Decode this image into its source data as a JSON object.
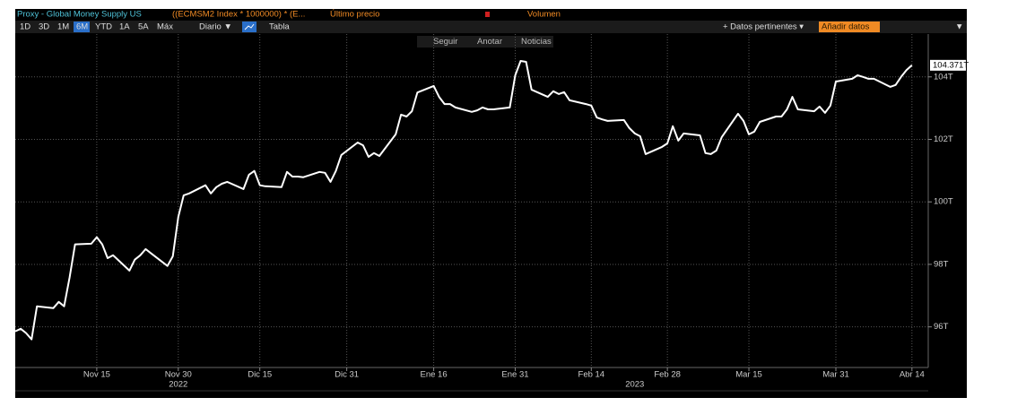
{
  "header": {
    "title": "Proxy - Global Money Supply US",
    "formula": "((ECMSM2 Index * 1000000) * (E...",
    "price": "Último precio",
    "volume": "Volumen"
  },
  "toolbar": {
    "ranges": [
      "1D",
      "3D",
      "1M",
      "6M",
      "YTD",
      "1A",
      "5A",
      "Máx"
    ],
    "active": "6M",
    "interval": "Diario ▼",
    "table": "Tabla",
    "related": "+ Datos pertinentes ▾",
    "add": "Añadir datos",
    "menu": "▼"
  },
  "actions": [
    "Seguir",
    "Anotar",
    "Noticias"
  ],
  "chart_data": {
    "type": "line",
    "x": [
      "2022-10-31",
      "2022-11-01",
      "2022-11-02",
      "2022-11-03",
      "2022-11-04",
      "2022-11-07",
      "2022-11-08",
      "2022-11-09",
      "2022-11-10",
      "2022-11-11",
      "2022-11-14",
      "2022-11-15",
      "2022-11-16",
      "2022-11-17",
      "2022-11-18",
      "2022-11-21",
      "2022-11-22",
      "2022-11-23",
      "2022-11-24",
      "2022-11-25",
      "2022-11-28",
      "2022-11-29",
      "2022-11-30",
      "2022-12-01",
      "2022-12-02",
      "2022-12-05",
      "2022-12-06",
      "2022-12-07",
      "2022-12-08",
      "2022-12-09",
      "2022-12-12",
      "2022-12-13",
      "2022-12-14",
      "2022-12-15",
      "2022-12-16",
      "2022-12-19",
      "2022-12-20",
      "2022-12-21",
      "2022-12-22",
      "2022-12-23",
      "2022-12-26",
      "2022-12-27",
      "2022-12-28",
      "2022-12-29",
      "2022-12-30",
      "2023-01-02",
      "2023-01-03",
      "2023-01-04",
      "2023-01-05",
      "2023-01-06",
      "2023-01-09",
      "2023-01-10",
      "2023-01-11",
      "2023-01-12",
      "2023-01-13",
      "2023-01-16",
      "2023-01-17",
      "2023-01-18",
      "2023-01-19",
      "2023-01-20",
      "2023-01-23",
      "2023-01-24",
      "2023-01-25",
      "2023-01-26",
      "2023-01-27",
      "2023-01-30",
      "2023-01-31",
      "2023-02-01",
      "2023-02-02",
      "2023-02-03",
      "2023-02-06",
      "2023-02-07",
      "2023-02-08",
      "2023-02-09",
      "2023-02-10",
      "2023-02-13",
      "2023-02-14",
      "2023-02-15",
      "2023-02-16",
      "2023-02-17",
      "2023-02-20",
      "2023-02-21",
      "2023-02-22",
      "2023-02-23",
      "2023-02-24",
      "2023-02-27",
      "2023-02-28",
      "2023-03-01",
      "2023-03-02",
      "2023-03-03",
      "2023-03-06",
      "2023-03-07",
      "2023-03-08",
      "2023-03-09",
      "2023-03-10",
      "2023-03-13",
      "2023-03-14",
      "2023-03-15",
      "2023-03-16",
      "2023-03-17",
      "2023-03-20",
      "2023-03-21",
      "2023-03-22",
      "2023-03-23",
      "2023-03-24",
      "2023-03-27",
      "2023-03-28",
      "2023-03-29",
      "2023-03-30",
      "2023-03-31",
      "2023-04-03",
      "2023-04-04",
      "2023-04-05",
      "2023-04-06",
      "2023-04-07",
      "2023-04-10",
      "2023-04-11",
      "2023-04-12",
      "2023-04-13",
      "2023-04-14"
    ],
    "series": [
      {
        "name": "Proxy - Global Money Supply US",
        "color": "#ffffff",
        "values": [
          95.86,
          95.94,
          95.8,
          95.6,
          96.66,
          96.6,
          96.8,
          96.66,
          97.58,
          98.64,
          98.66,
          98.87,
          98.64,
          98.2,
          98.29,
          97.8,
          98.15,
          98.29,
          98.49,
          98.35,
          97.95,
          98.26,
          99.52,
          100.21,
          100.27,
          100.53,
          100.27,
          100.47,
          100.58,
          100.64,
          100.41,
          100.87,
          100.99,
          100.53,
          100.5,
          100.47,
          100.96,
          100.81,
          100.81,
          100.79,
          100.96,
          100.93,
          100.64,
          100.99,
          101.5,
          101.9,
          101.81,
          101.44,
          101.56,
          101.47,
          102.16,
          102.79,
          102.73,
          102.9,
          103.5,
          103.71,
          103.36,
          103.13,
          103.13,
          103.02,
          102.88,
          102.93,
          103.02,
          102.96,
          102.96,
          103.02,
          104.05,
          104.51,
          104.48,
          103.59,
          103.36,
          103.54,
          103.45,
          103.51,
          103.25,
          103.13,
          103.08,
          102.7,
          102.64,
          102.59,
          102.62,
          102.36,
          102.19,
          102.1,
          101.53,
          101.76,
          101.87,
          102.42,
          101.96,
          102.19,
          102.13,
          101.56,
          101.53,
          101.64,
          102.07,
          102.82,
          102.59,
          102.16,
          102.25,
          102.56,
          102.73,
          102.73,
          102.96,
          103.36,
          102.96,
          102.9,
          103.05,
          102.85,
          103.08,
          103.85,
          103.94,
          104.05,
          104.0,
          103.94,
          103.94,
          103.68,
          103.74,
          104.0,
          104.22,
          104.371
        ],
        "value_labels": [
          null,
          null,
          null,
          null,
          null,
          null,
          null,
          null,
          null,
          null,
          null,
          null,
          null,
          null,
          null,
          null,
          null,
          null,
          null,
          null,
          null,
          null,
          null,
          null,
          null,
          null,
          null,
          null,
          null,
          null,
          null,
          null,
          null,
          null,
          null,
          null,
          null,
          null,
          null,
          null,
          null,
          null,
          null,
          null,
          null,
          null,
          null,
          null,
          null,
          null,
          null,
          null,
          null,
          null,
          null,
          null,
          null,
          null,
          null,
          null,
          null,
          null,
          null,
          null,
          null,
          null,
          null,
          null,
          null,
          null,
          null,
          null,
          null,
          null,
          null,
          null,
          null,
          null,
          null,
          null,
          null,
          null,
          null,
          null,
          null,
          null,
          null,
          null,
          null,
          null,
          null,
          null,
          null,
          null,
          null,
          null,
          null,
          null,
          null,
          null,
          null,
          null,
          null,
          null,
          null,
          null,
          null,
          null,
          null,
          null,
          null,
          null,
          null,
          null,
          null,
          null,
          null,
          null,
          null,
          "104.371T"
        ]
      }
    ],
    "xlim": [
      "2022-10-31",
      "2023-04-17"
    ],
    "xticks": [
      {
        "value": "2022-11-15",
        "label": "Nov 15"
      },
      {
        "value": "2022-11-30",
        "label": "Nov 30"
      },
      {
        "value": "2022-12-15",
        "label": "Dic 15"
      },
      {
        "value": "2022-12-31",
        "label": "Dic 31"
      },
      {
        "value": "2023-01-16",
        "label": "Ene 16"
      },
      {
        "value": "2023-01-31",
        "label": "Ene 31"
      },
      {
        "value": "2023-02-14",
        "label": "Feb 14"
      },
      {
        "value": "2023-02-28",
        "label": "Feb 28"
      },
      {
        "value": "2023-03-15",
        "label": "Mar 15"
      },
      {
        "value": "2023-03-31",
        "label": "Mar 31"
      },
      {
        "value": "2023-04-14",
        "label": "Abr 14"
      }
    ],
    "year_labels": [
      {
        "value": "2022-11-30",
        "label": "2022"
      },
      {
        "value": "2023-02-22",
        "label": "2023"
      }
    ],
    "ylim": [
      94.7,
      105.37
    ],
    "yticks": [
      {
        "value": 96,
        "label": "96T"
      },
      {
        "value": 98,
        "label": "98T"
      },
      {
        "value": 100,
        "label": "100T"
      },
      {
        "value": 102,
        "label": "102T"
      },
      {
        "value": 104,
        "label": "104T"
      }
    ],
    "grid": true
  }
}
